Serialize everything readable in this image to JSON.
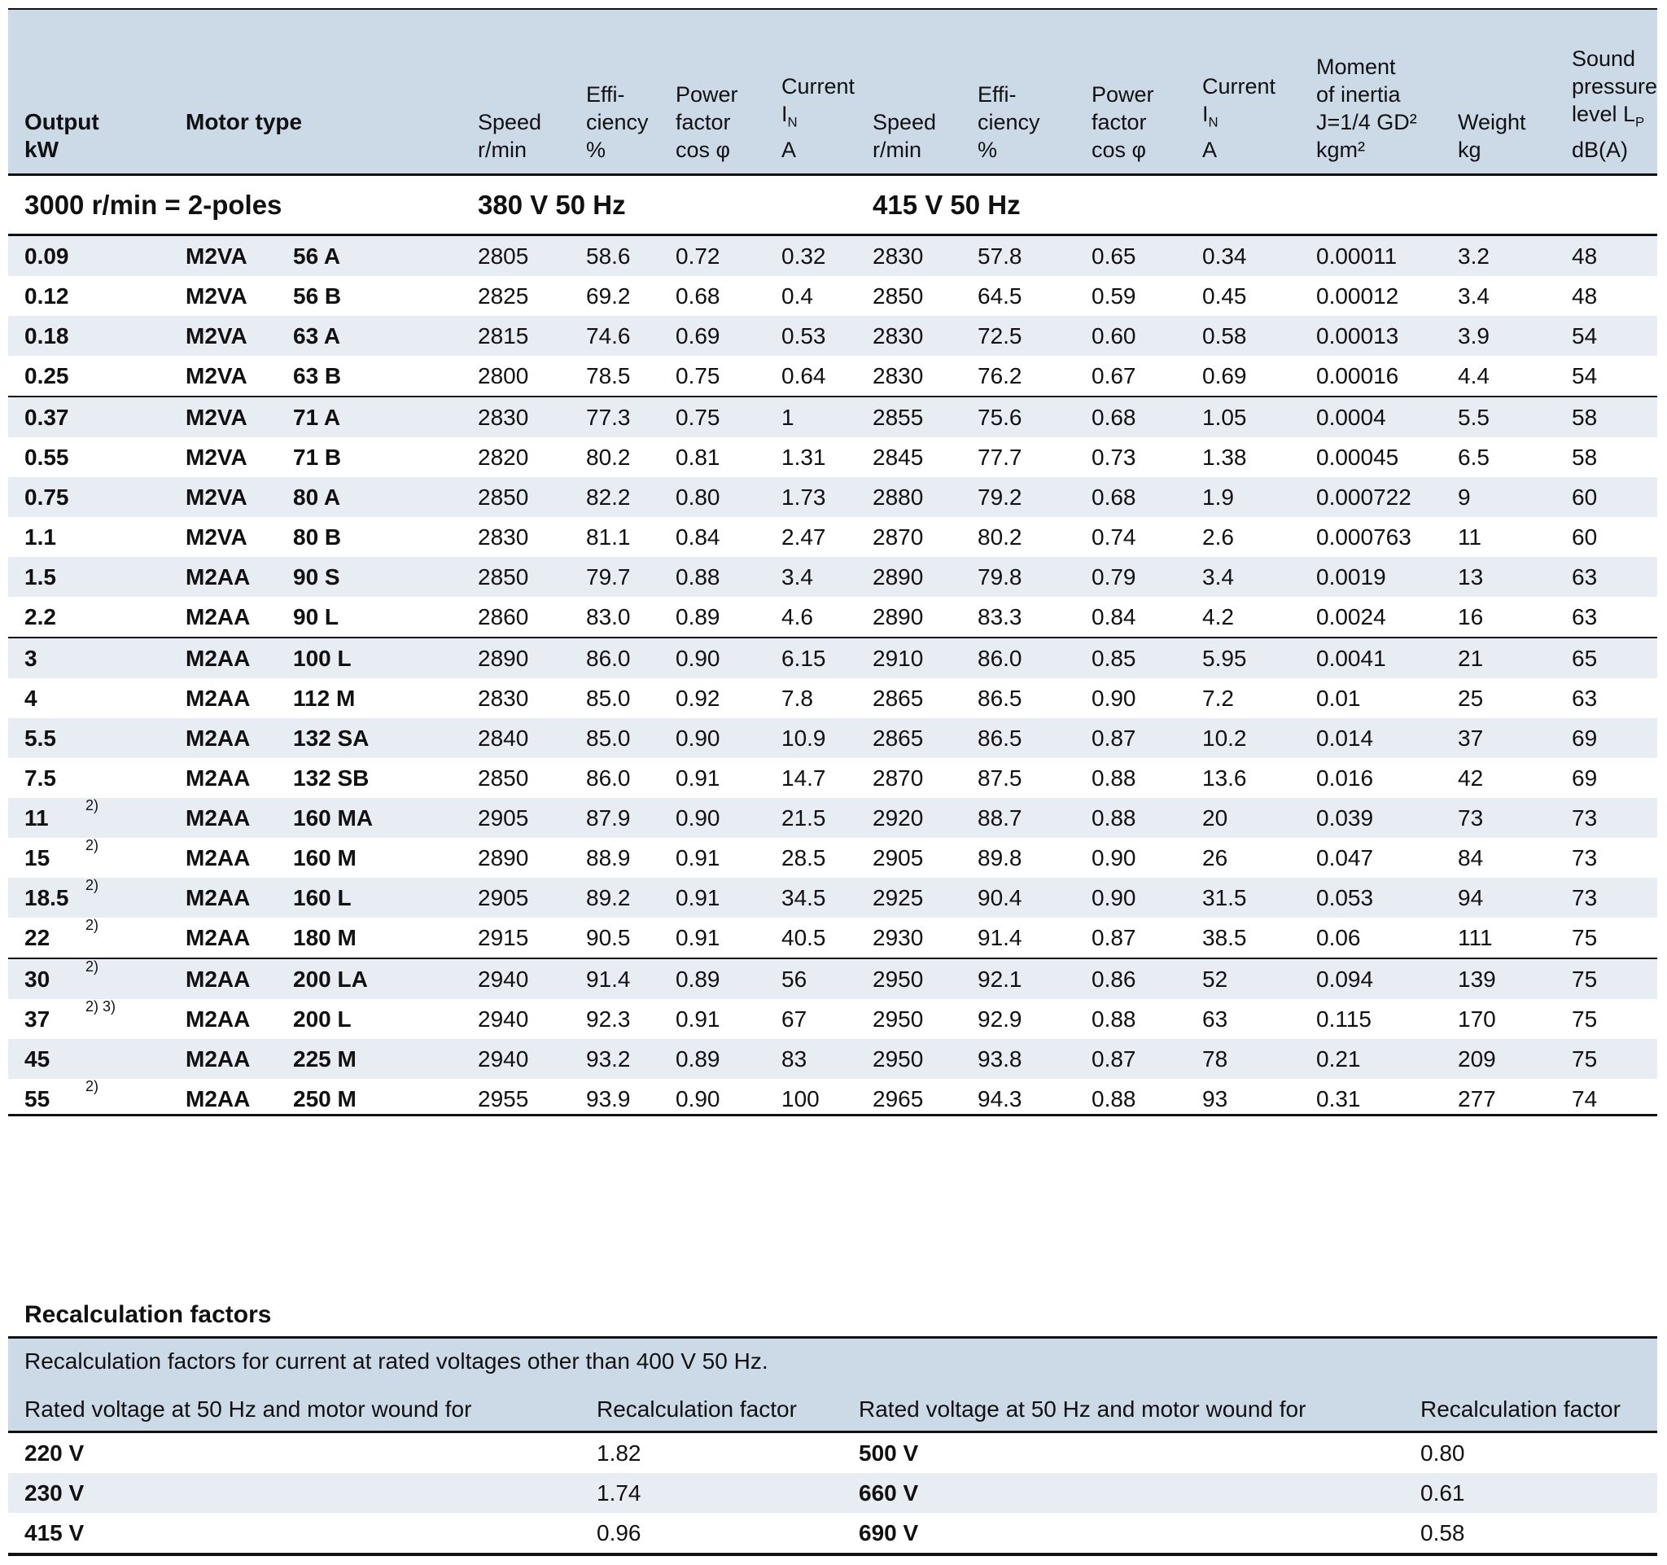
{
  "colors": {
    "header_band": "#ccdae8",
    "row_stripe": "#e8edf4",
    "rule": "#111111",
    "text": "#111111"
  },
  "main_table": {
    "section_titles": {
      "poles": "3000 r/min = 2-poles",
      "v380": "380 V 50 Hz",
      "v415": "415 V 50 Hz"
    },
    "headers": [
      {
        "id": "output",
        "bold": true,
        "lines": [
          [
            "Output"
          ],
          [
            "kW"
          ]
        ]
      },
      {
        "id": "motor-type",
        "bold": true,
        "lines": [
          [
            "Motor type"
          ],
          [
            " "
          ]
        ]
      },
      {
        "id": "speed-380",
        "lines": [
          [
            "Speed"
          ],
          [
            "r/min"
          ]
        ]
      },
      {
        "id": "efficiency-380",
        "lines": [
          [
            "Effi-"
          ],
          [
            "ciency"
          ],
          [
            "%"
          ]
        ]
      },
      {
        "id": "power-factor-380",
        "lines": [
          [
            "Power"
          ],
          [
            "factor"
          ],
          [
            "cos φ"
          ]
        ]
      },
      {
        "id": "current-380",
        "lines": [
          [
            "Current"
          ],
          [
            "I",
            {
              "sub": "N"
            }
          ],
          [
            "A"
          ]
        ]
      },
      {
        "id": "speed-415",
        "lines": [
          [
            "Speed"
          ],
          [
            "r/min"
          ]
        ]
      },
      {
        "id": "efficiency-415",
        "lines": [
          [
            "Effi-"
          ],
          [
            "ciency"
          ],
          [
            "%"
          ]
        ]
      },
      {
        "id": "power-factor-415",
        "lines": [
          [
            "Power"
          ],
          [
            "factor"
          ],
          [
            "cos φ"
          ]
        ]
      },
      {
        "id": "current-415",
        "lines": [
          [
            "Current"
          ],
          [
            "I",
            {
              "sub": "N"
            }
          ],
          [
            "A"
          ]
        ]
      },
      {
        "id": "moment-of-inertia",
        "lines": [
          [
            "Moment"
          ],
          [
            "of inertia"
          ],
          [
            "J=1/4 GD²"
          ],
          [
            "kgm²"
          ]
        ]
      },
      {
        "id": "weight",
        "lines": [
          [
            "Weight"
          ],
          [
            "kg"
          ]
        ]
      },
      {
        "id": "sound-pressure",
        "lines": [
          [
            "Sound"
          ],
          [
            "pressure"
          ],
          [
            "level L",
            {
              "sub": "P"
            }
          ],
          [
            "dB(A)"
          ]
        ]
      }
    ],
    "group_starts": [
      4,
      10,
      18
    ],
    "rows": [
      [
        "0.09",
        "",
        "M2VA",
        "56 A",
        "2805",
        "58.6",
        "0.72",
        "0.32",
        "2830",
        "57.8",
        "0.65",
        "0.34",
        "0.00011",
        "3.2",
        "48"
      ],
      [
        "0.12",
        "",
        "M2VA",
        "56 B",
        "2825",
        "69.2",
        "0.68",
        "0.4",
        "2850",
        "64.5",
        "0.59",
        "0.45",
        "0.00012",
        "3.4",
        "48"
      ],
      [
        "0.18",
        "",
        "M2VA",
        "63 A",
        "2815",
        "74.6",
        "0.69",
        "0.53",
        "2830",
        "72.5",
        "0.60",
        "0.58",
        "0.00013",
        "3.9",
        "54"
      ],
      [
        "0.25",
        "",
        "M2VA",
        "63 B",
        "2800",
        "78.5",
        "0.75",
        "0.64",
        "2830",
        "76.2",
        "0.67",
        "0.69",
        "0.00016",
        "4.4",
        "54"
      ],
      [
        "0.37",
        "",
        "M2VA",
        "71 A",
        "2830",
        "77.3",
        "0.75",
        "1",
        "2855",
        "75.6",
        "0.68",
        "1.05",
        "0.0004",
        "5.5",
        "58"
      ],
      [
        "0.55",
        "",
        "M2VA",
        "71 B",
        "2820",
        "80.2",
        "0.81",
        "1.31",
        "2845",
        "77.7",
        "0.73",
        "1.38",
        "0.00045",
        "6.5",
        "58"
      ],
      [
        "0.75",
        "",
        "M2VA",
        "80 A",
        "2850",
        "82.2",
        "0.80",
        "1.73",
        "2880",
        "79.2",
        "0.68",
        "1.9",
        "0.000722",
        "9",
        "60"
      ],
      [
        "1.1",
        "",
        "M2VA",
        "80 B",
        "2830",
        "81.1",
        "0.84",
        "2.47",
        "2870",
        "80.2",
        "0.74",
        "2.6",
        "0.000763",
        "11",
        "60"
      ],
      [
        "1.5",
        "",
        "M2AA",
        "90 S",
        "2850",
        "79.7",
        "0.88",
        "3.4",
        "2890",
        "79.8",
        "0.79",
        "3.4",
        "0.0019",
        "13",
        "63"
      ],
      [
        "2.2",
        "",
        "M2AA",
        "90 L",
        "2860",
        "83.0",
        "0.89",
        "4.6",
        "2890",
        "83.3",
        "0.84",
        "4.2",
        "0.0024",
        "16",
        "63"
      ],
      [
        "3",
        "",
        "M2AA",
        "100 L",
        "2890",
        "86.0",
        "0.90",
        "6.15",
        "2910",
        "86.0",
        "0.85",
        "5.95",
        "0.0041",
        "21",
        "65"
      ],
      [
        "4",
        "",
        "M2AA",
        "112 M",
        "2830",
        "85.0",
        "0.92",
        "7.8",
        "2865",
        "86.5",
        "0.90",
        "7.2",
        "0.01",
        "25",
        "63"
      ],
      [
        "5.5",
        "",
        "M2AA",
        "132 SA",
        "2840",
        "85.0",
        "0.90",
        "10.9",
        "2865",
        "86.5",
        "0.87",
        "10.2",
        "0.014",
        "37",
        "69"
      ],
      [
        "7.5",
        "",
        "M2AA",
        "132 SB",
        "2850",
        "86.0",
        "0.91",
        "14.7",
        "2870",
        "87.5",
        "0.88",
        "13.6",
        "0.016",
        "42",
        "69"
      ],
      [
        "11",
        "2)",
        "M2AA",
        "160 MA",
        "2905",
        "87.9",
        "0.90",
        "21.5",
        "2920",
        "88.7",
        "0.88",
        "20",
        "0.039",
        "73",
        "73"
      ],
      [
        "15",
        "2)",
        "M2AA",
        "160 M",
        "2890",
        "88.9",
        "0.91",
        "28.5",
        "2905",
        "89.8",
        "0.90",
        "26",
        "0.047",
        "84",
        "73"
      ],
      [
        "18.5",
        "2)",
        "M2AA",
        "160 L",
        "2905",
        "89.2",
        "0.91",
        "34.5",
        "2925",
        "90.4",
        "0.90",
        "31.5",
        "0.053",
        "94",
        "73"
      ],
      [
        "22",
        "2)",
        "M2AA",
        "180 M",
        "2915",
        "90.5",
        "0.91",
        "40.5",
        "2930",
        "91.4",
        "0.87",
        "38.5",
        "0.06",
        "111",
        "75"
      ],
      [
        "30",
        "2)",
        "M2AA",
        "200 LA",
        "2940",
        "91.4",
        "0.89",
        "56",
        "2950",
        "92.1",
        "0.86",
        "52",
        "0.094",
        "139",
        "75"
      ],
      [
        "37",
        "2) 3)",
        "M2AA",
        "200 L",
        "2940",
        "92.3",
        "0.91",
        "67",
        "2950",
        "92.9",
        "0.88",
        "63",
        "0.115",
        "170",
        "75"
      ],
      [
        "45",
        "",
        "M2AA",
        "225 M",
        "2940",
        "93.2",
        "0.89",
        "83",
        "2950",
        "93.8",
        "0.87",
        "78",
        "0.21",
        "209",
        "75"
      ],
      [
        "55",
        "2)",
        "M2AA",
        "250 M",
        "2955",
        "93.9",
        "0.90",
        "100",
        "2965",
        "94.3",
        "0.88",
        "93",
        "0.31",
        "277",
        "74"
      ]
    ]
  },
  "recalc": {
    "title": "Recalculation factors",
    "caption": "Recalculation factors for current at rated voltages other than 400 V 50 Hz.",
    "col_headers": [
      "Rated voltage at 50 Hz and motor wound for",
      "Recalculation factor",
      "Rated voltage at 50 Hz and motor wound for",
      "Recalculation factor"
    ],
    "rows": [
      [
        "220 V",
        "1.82",
        "500 V",
        "0.80"
      ],
      [
        "230 V",
        "1.74",
        "660 V",
        "0.61"
      ],
      [
        "415 V",
        "0.96",
        "690 V",
        "0.58"
      ]
    ]
  }
}
